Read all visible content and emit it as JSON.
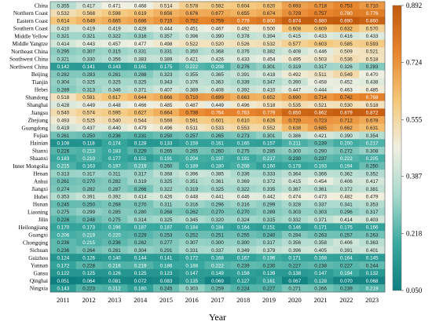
{
  "chart_data": {
    "type": "heatmap",
    "title": "",
    "xlabel": "Year",
    "ylabel": "",
    "x": [
      "2011",
      "2012",
      "2013",
      "2014",
      "2015",
      "2016",
      "2017",
      "2018",
      "2019",
      "2020",
      "2021",
      "2022",
      "2023"
    ],
    "y": [
      "China",
      "Northern Coast",
      "Eastern Coast",
      "Southern Coast",
      "Middle Yellow",
      "Middle Yangtze",
      "Northeast China",
      "Southwest China",
      "Northwest China",
      "Beijing",
      "Tianjin",
      "Hebei",
      "Shandong",
      "Shanghai",
      "Jiangsu",
      "Zhejiang",
      "Guangdong",
      "Fujian",
      "Hainian",
      "Shanxi",
      "Shaanxi",
      "Inner Mongolia",
      "Henan",
      "Anhui",
      "Jiangxi",
      "Hubei",
      "Hunan",
      "Liaoning",
      "Jilin",
      "Heilongjiang",
      "Guangxi",
      "Chongqing",
      "Sichuan",
      "Guizhou",
      "Yunnan",
      "Gansu",
      "Qinghai",
      "Ningxia"
    ],
    "values": [
      [
        0.355,
        0.417,
        0.471,
        0.468,
        0.514,
        0.578,
        0.592,
        0.604,
        0.62,
        0.693,
        0.718,
        0.753,
        0.71
      ],
      [
        0.532,
        0.568,
        0.598,
        0.619,
        0.656,
        0.676,
        0.677,
        0.655,
        0.674,
        0.729,
        0.757,
        0.78,
        0.776
      ],
      [
        0.614,
        0.649,
        0.665,
        0.686,
        0.715,
        0.752,
        0.759,
        0.779,
        0.8,
        0.874,
        0.88,
        0.89,
        0.86
      ],
      [
        0.41,
        0.419,
        0.419,
        0.428,
        0.444,
        0.451,
        0.467,
        0.492,
        0.5,
        0.608,
        0.609,
        0.632,
        0.57
      ],
      [
        0.321,
        0.321,
        0.322,
        0.316,
        0.357,
        0.396,
        0.39,
        0.378,
        0.394,
        0.415,
        0.433,
        0.416,
        0.433
      ],
      [
        0.414,
        0.443,
        0.457,
        0.477,
        0.498,
        0.522,
        0.52,
        0.526,
        0.532,
        0.577,
        0.603,
        0.585,
        0.593
      ],
      [
        0.295,
        0.307,
        0.315,
        0.331,
        0.331,
        0.35,
        0.368,
        0.376,
        0.382,
        0.408,
        0.446,
        0.509,
        0.521
      ],
      [
        0.321,
        0.33,
        0.356,
        0.383,
        0.389,
        0.421,
        0.426,
        0.433,
        0.454,
        0.495,
        0.503,
        0.536,
        0.518
      ],
      [
        0.142,
        0.141,
        0.143,
        0.161,
        0.175,
        0.222,
        0.208,
        0.276,
        0.301,
        0.319,
        0.317,
        0.326,
        0.283
      ],
      [
        0.282,
        0.283,
        0.281,
        0.288,
        0.323,
        0.355,
        0.365,
        0.391,
        0.418,
        0.492,
        0.511,
        0.549,
        0.47
      ],
      [
        0.304,
        0.325,
        0.325,
        0.325,
        0.343,
        0.376,
        0.363,
        0.339,
        0.347,
        0.39,
        0.458,
        0.452,
        0.438
      ],
      [
        0.289,
        0.313,
        0.346,
        0.371,
        0.407,
        0.389,
        0.408,
        0.392,
        0.41,
        0.447,
        0.444,
        0.463,
        0.485
      ],
      [
        0.518,
        0.581,
        0.617,
        0.644,
        0.666,
        0.71,
        0.699,
        0.663,
        0.652,
        0.69,
        0.714,
        0.742,
        0.768
      ],
      [
        0.428,
        0.449,
        0.448,
        0.466,
        0.485,
        0.487,
        0.449,
        0.496,
        0.518,
        0.535,
        0.521,
        0.53,
        0.518
      ],
      [
        0.54,
        0.574,
        0.595,
        0.627,
        0.664,
        0.736,
        0.764,
        0.763,
        0.779,
        0.85,
        0.862,
        0.879,
        0.872
      ],
      [
        0.493,
        0.525,
        0.54,
        0.544,
        0.569,
        0.591,
        0.601,
        0.61,
        0.626,
        0.72,
        0.723,
        0.712,
        0.678
      ],
      [
        0.419,
        0.437,
        0.44,
        0.479,
        0.496,
        0.511,
        0.533,
        0.553,
        0.552,
        0.638,
        0.685,
        0.662,
        0.631
      ],
      [
        0.261,
        0.25,
        0.236,
        0.231,
        0.25,
        0.257,
        0.265,
        0.273,
        0.301,
        0.386,
        0.421,
        0.39,
        0.354
      ],
      [
        0.108,
        0.118,
        0.174,
        0.128,
        0.133,
        0.159,
        0.161,
        0.165,
        0.157,
        0.211,
        0.239,
        0.2,
        0.217
      ],
      [
        0.226,
        0.213,
        0.183,
        0.229,
        0.265,
        0.265,
        0.26,
        0.275,
        0.285,
        0.3,
        0.29,
        0.272,
        0.308
      ],
      [
        0.183,
        0.21,
        0.177,
        0.151,
        0.191,
        0.204,
        0.197,
        0.191,
        0.217,
        0.23,
        0.237,
        0.222,
        0.205
      ],
      [
        0.215,
        0.163,
        0.197,
        0.219,
        0.26,
        0.189,
        0.18,
        0.208,
        0.16,
        0.178,
        0.193,
        0.194,
        0.25
      ],
      [
        0.313,
        0.317,
        0.311,
        0.317,
        0.368,
        0.396,
        0.385,
        0.336,
        0.333,
        0.364,
        0.366,
        0.362,
        0.352
      ],
      [
        0.261,
        0.27,
        0.282,
        0.319,
        0.325,
        0.351,
        0.361,
        0.369,
        0.372,
        0.415,
        0.454,
        0.406,
        0.417
      ],
      [
        0.274,
        0.282,
        0.287,
        0.266,
        0.322,
        0.319,
        0.325,
        0.322,
        0.335,
        0.367,
        0.361,
        0.372,
        0.381
      ],
      [
        0.353,
        0.391,
        0.392,
        0.414,
        0.426,
        0.448,
        0.441,
        0.446,
        0.442,
        0.474,
        0.473,
        0.482,
        0.479
      ],
      [
        0.245,
        0.25,
        0.268,
        0.27,
        0.311,
        0.316,
        0.296,
        0.316,
        0.299,
        0.328,
        0.337,
        0.341,
        0.353
      ],
      [
        0.275,
        0.299,
        0.285,
        0.28,
        0.268,
        0.262,
        0.27,
        0.27,
        0.289,
        0.303,
        0.303,
        0.296,
        0.317
      ],
      [
        0.226,
        0.248,
        0.275,
        0.314,
        0.325,
        0.345,
        0.32,
        0.324,
        0.315,
        0.332,
        0.371,
        0.414,
        0.403
      ],
      [
        0.17,
        0.173,
        0.196,
        0.187,
        0.187,
        0.184,
        0.184,
        0.164,
        0.151,
        0.146,
        0.171,
        0.175,
        0.166
      ],
      [
        0.206,
        0.219,
        0.22,
        0.229,
        0.253,
        0.252,
        0.251,
        0.255,
        0.24,
        0.284,
        0.263,
        0.257,
        0.263
      ],
      [
        0.236,
        0.215,
        0.236,
        0.262,
        0.277,
        0.307,
        0.3,
        0.3,
        0.317,
        0.356,
        0.358,
        0.406,
        0.363
      ],
      [
        0.236,
        0.264,
        0.281,
        0.304,
        0.291,
        0.331,
        0.337,
        0.349,
        0.379,
        0.396,
        0.405,
        0.391,
        0.401
      ],
      [
        0.124,
        0.126,
        0.14,
        0.144,
        0.141,
        0.172,
        0.168,
        0.167,
        0.196,
        0.171,
        0.168,
        0.164,
        0.145
      ],
      [
        0.172,
        0.228,
        0.216,
        0.219,
        0.186,
        0.188,
        0.222,
        0.239,
        0.23,
        0.227,
        0.238,
        0.227,
        0.244
      ],
      [
        0.122,
        0.125,
        0.126,
        0.125,
        0.123,
        0.147,
        0.149,
        0.158,
        0.139,
        0.138,
        0.147,
        0.194,
        0.132
      ],
      [
        0.051,
        0.064,
        0.081,
        0.072,
        0.083,
        0.135,
        0.069,
        0.127,
        0.161,
        0.067,
        0.128,
        0.07,
        0.068
      ],
      [
        0.143,
        0.223,
        0.212,
        0.16,
        0.245,
        0.303,
        0.259,
        0.224,
        0.227,
        0.271,
        0.266,
        0.239,
        0.219
      ]
    ],
    "vmin": 0.05,
    "vmax": 0.892,
    "colorbar": {
      "ticks": [
        0.892,
        0.724,
        0.555,
        0.387,
        0.218,
        0.05
      ],
      "tick_labels": [
        "0.892",
        "0.724",
        "0.555",
        "0.387",
        "0.218",
        "0.050"
      ],
      "colors": [
        "#0e7f80",
        "#3aa99f",
        "#a9d9cd",
        "#f0f0e2",
        "#f5c77a",
        "#e8862e",
        "#c15a0e"
      ]
    },
    "grid": false,
    "legend": "colorbar-right"
  }
}
